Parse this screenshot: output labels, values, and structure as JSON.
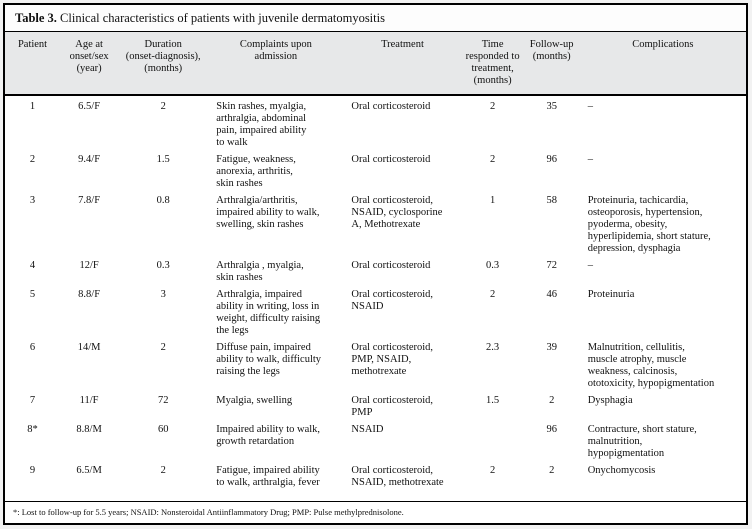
{
  "title": {
    "label": "Table 3.",
    "text": "Clinical characteristics of patients with juvenile dermatomyositis"
  },
  "colors": {
    "border": "#000000",
    "header_bg": "#e7e8e9",
    "body_bg": "#ffffff",
    "text": "#111111"
  },
  "table": {
    "columns": [
      {
        "key": "patient",
        "label": "Patient",
        "align": "center"
      },
      {
        "key": "age",
        "label": "Age at\nonset/sex\n(year)",
        "align": "center"
      },
      {
        "key": "duration",
        "label": "Duration\n(onset-diagnosis),\n(months)",
        "align": "center"
      },
      {
        "key": "complaints",
        "label": "Complaints upon\nadmission",
        "align": "left"
      },
      {
        "key": "treatment",
        "label": "Treatment",
        "align": "left"
      },
      {
        "key": "time",
        "label": "Time\nresponded to\ntreatment,\n(months)",
        "align": "center"
      },
      {
        "key": "followup",
        "label": "Follow-up\n(months)",
        "align": "center"
      },
      {
        "key": "complications",
        "label": "Complications",
        "align": "left"
      }
    ],
    "rows": [
      {
        "cells": [
          "1",
          "6.5/F",
          "2",
          "Skin rashes, myalgia,\narthralgia, abdominal\npain, impaired ability\nto walk",
          "Oral corticosteroid",
          "2",
          "35",
          "–"
        ]
      },
      {
        "cells": [
          "2",
          "9.4/F",
          "1.5",
          "Fatigue, weakness,\nanorexia, arthritis,\nskin rashes",
          "Oral corticosteroid",
          "2",
          "96",
          "–"
        ]
      },
      {
        "cells": [
          "3",
          "7.8/F",
          "0.8",
          "Arthralgia/arthritis,\nimpaired ability to walk,\nswelling, skin rashes",
          "Oral corticosteroid,\nNSAID, cyclosporine\nA, Methotrexate",
          "1",
          "58",
          "Proteinuria, tachicardia,\nosteoporosis, hypertension,\npyoderma, obesity,\nhyperlipidemia, short stature,\ndepression, dysphagia"
        ]
      },
      {
        "cells": [
          "4",
          "12/F",
          "0.3",
          "Arthralgia , myalgia,\nskin rashes",
          "Oral corticosteroid",
          "0.3",
          "72",
          "–"
        ]
      },
      {
        "cells": [
          "5",
          "8.8/F",
          "3",
          "Arthralgia, impaired\nability in writing, loss in\nweight, difficulty raising\nthe legs",
          "Oral corticosteroid,\nNSAID",
          "2",
          "46",
          "Proteinuria"
        ]
      },
      {
        "cells": [
          "6",
          "14/M",
          "2",
          "Diffuse pain, impaired\nability to walk, difficulty\nraising the legs",
          "Oral corticosteroid,\nPMP, NSAID,\nmethotrexate",
          "2.3",
          "39",
          "Malnutrition, cellulitis,\nmuscle atrophy, muscle\nweakness, calcinosis,\nototoxicity, hypopigmentation"
        ]
      },
      {
        "cells": [
          "7",
          "11/F",
          "72",
          "Myalgia, swelling",
          "Oral corticosteroid,\nPMP",
          "1.5",
          "2",
          "Dysphagia"
        ]
      },
      {
        "cells": [
          "8*",
          "8.8/M",
          "60",
          "Impaired ability to walk,\ngrowth retardation",
          "NSAID",
          "",
          "96",
          "Contracture, short stature,\nmalnutrition,\nhypopigmentation"
        ]
      },
      {
        "cells": [
          "9",
          "6.5/M",
          "2",
          "Fatigue, impaired ability\nto walk, arthralgia, fever",
          "Oral corticosteroid,\nNSAID, methotrexate",
          "2",
          "2",
          "Onychomycosis"
        ]
      }
    ]
  },
  "footnote": "*: Lost to follow-up for 5.5 years; NSAID: Nonsteroidal Antiinflammatory Drug; PMP: Pulse methylprednisolone."
}
